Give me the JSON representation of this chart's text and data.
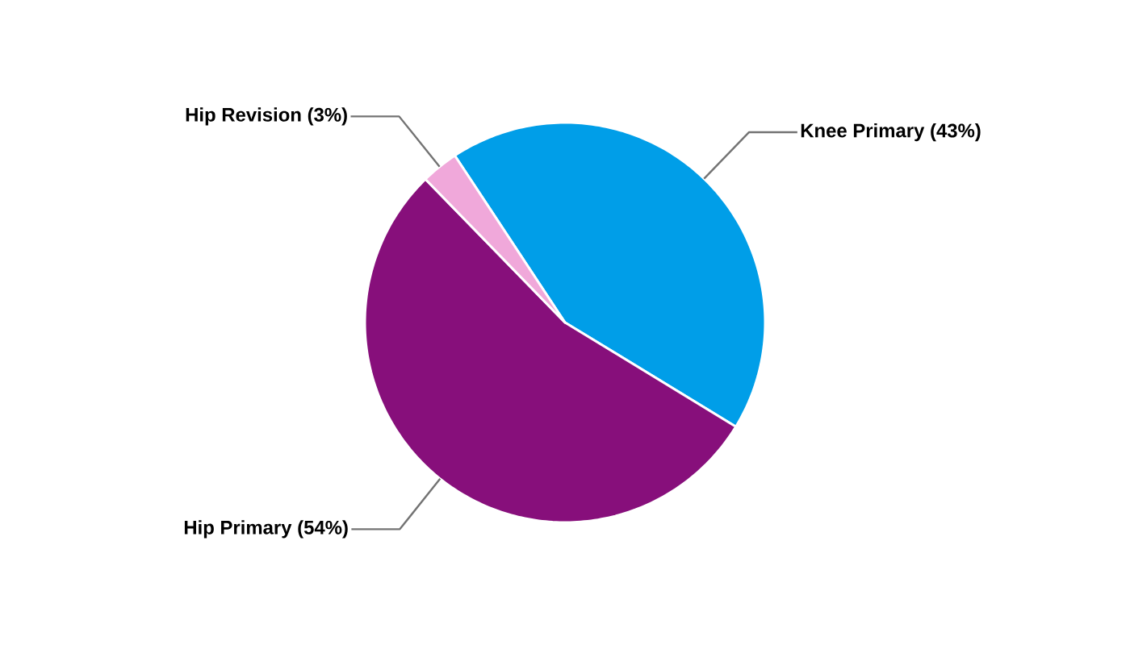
{
  "chart_data": {
    "type": "pie",
    "categories": [
      "Knee Primary (43%)",
      "Hip Primary (54%)",
      "Hip Revision (3%)"
    ],
    "values": [
      43,
      54,
      3
    ],
    "colors": [
      "#009ee8",
      "#870f7b",
      "#f0a8da"
    ]
  }
}
